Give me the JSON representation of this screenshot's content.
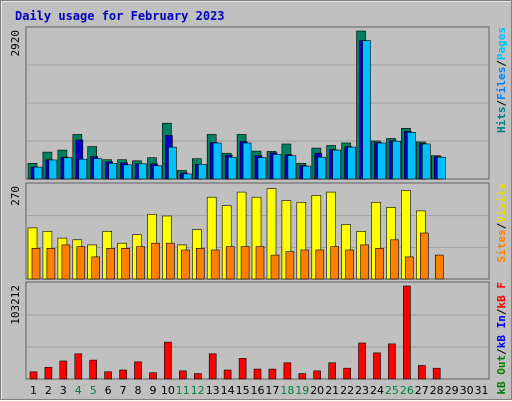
{
  "chart_data": {
    "type": "bar",
    "title": "Daily usage for February 2023",
    "categories": [
      "1",
      "2",
      "3",
      "4",
      "5",
      "6",
      "7",
      "8",
      "9",
      "10",
      "11",
      "12",
      "13",
      "14",
      "15",
      "16",
      "17",
      "18",
      "19",
      "20",
      "21",
      "22",
      "23",
      "24",
      "25",
      "26",
      "27",
      "28",
      "29",
      "30",
      "31"
    ],
    "weekend_days": [
      "4",
      "5",
      "11",
      "12",
      "18",
      "19",
      "25",
      "26"
    ],
    "panels": [
      {
        "ymax_label": "2920",
        "ylim": [
          0,
          2920
        ],
        "legend": [
          "Pages",
          "/",
          "Files",
          "/",
          "Hits"
        ],
        "legend_colors": [
          "#00c0ff",
          "#000000",
          "#0080ff",
          "#000000",
          "#008080"
        ],
        "series": [
          {
            "name": "Hits",
            "color": "#008060",
            "values": [
              310,
              530,
              570,
              880,
              640,
              380,
              380,
              360,
              420,
              1100,
              170,
              400,
              880,
              510,
              880,
              550,
              545,
              690,
              310,
              610,
              660,
              710,
              2920,
              750,
              800,
              1000,
              730,
              460,
              0,
              0,
              0
            ]
          },
          {
            "name": "Files",
            "color": "#0000c8",
            "values": [
              240,
              380,
              430,
              770,
              440,
              340,
              320,
              300,
              300,
              860,
              120,
              290,
              720,
              470,
              740,
              460,
              515,
              480,
              265,
              510,
              580,
              640,
              2730,
              720,
              755,
              940,
              700,
              440,
              0,
              0,
              0
            ]
          },
          {
            "name": "Pages",
            "color": "#00c0ff",
            "values": [
              235,
              375,
              420,
              390,
              400,
              310,
              280,
              300,
              260,
              630,
              100,
              290,
              710,
              430,
              710,
              420,
              485,
              460,
              255,
              430,
              570,
              630,
              2730,
              710,
              745,
              920,
              690,
              430,
              0,
              0,
              0
            ]
          }
        ]
      },
      {
        "ymax_label": "270",
        "ylim": [
          0,
          270
        ],
        "legend": [
          "Visits",
          "/",
          "Sites"
        ],
        "legend_colors": [
          "#e0e000",
          "#000000",
          "#ff8000"
        ],
        "series": [
          {
            "name": "Visits",
            "color": "#ffff00",
            "values": [
              150,
              140,
              120,
              115,
              100,
              140,
              105,
              130,
              190,
              185,
              100,
              145,
              240,
              215,
              255,
              240,
              265,
              230,
              225,
              245,
              255,
              160,
              140,
              225,
              210,
              260,
              200,
              0,
              0,
              0,
              0
            ]
          },
          {
            "name": "Sites",
            "color": "#ff8000",
            "values": [
              90,
              90,
              100,
              95,
              65,
              90,
              90,
              95,
              105,
              105,
              85,
              90,
              85,
              95,
              95,
              95,
              70,
              80,
              85,
              85,
              95,
              85,
              100,
              90,
              115,
              65,
              135,
              70,
              0,
              0,
              0
            ]
          }
        ]
      },
      {
        "ymax_label": "103212",
        "ylim": [
          0,
          103212
        ],
        "legend": [
          "kB F",
          "/",
          "kB In",
          "/",
          "kB Out"
        ],
        "legend_colors": [
          "#ff0000",
          "#000000",
          "#0000ff",
          "#000000",
          "#008000"
        ],
        "series": [
          {
            "name": "kB F",
            "color": "#ff0000",
            "values": [
              8000,
              13000,
              20000,
              28000,
              21000,
              8000,
              10000,
              19000,
              7000,
              41000,
              9000,
              6000,
              28000,
              10000,
              23000,
              11000,
              11000,
              18000,
              6000,
              9000,
              18000,
              12000,
              40000,
              29000,
              39000,
              103212,
              15000,
              12000,
              0,
              0,
              0
            ]
          }
        ]
      }
    ]
  }
}
